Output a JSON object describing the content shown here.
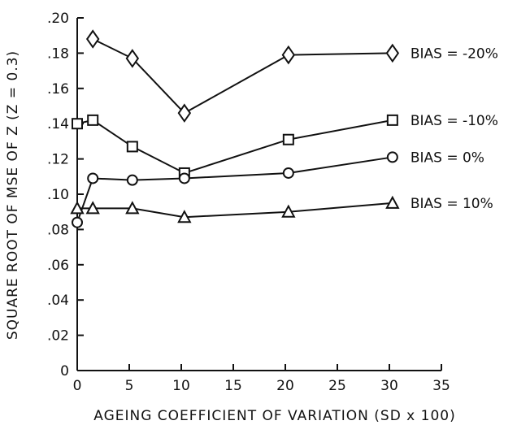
{
  "chart_data": {
    "type": "line",
    "title": "",
    "xlabel": "AGEING COEFFICIENT OF VARIATION (SD x 100)",
    "ylabel": "SQUARE ROOT OF MSE OF Z (Z = 0.3)",
    "xlim": [
      0,
      35
    ],
    "ylim": [
      0,
      0.2
    ],
    "x_ticks": [
      "0",
      "5",
      "10",
      "15",
      "20",
      "25",
      "30",
      "35"
    ],
    "y_ticks": [
      "0",
      ".02",
      ".04",
      ".06",
      ".08",
      ".10",
      ".12",
      ".14",
      ".16",
      ".18",
      ".20"
    ],
    "series": [
      {
        "name": "BIAS = -20%",
        "marker": "diamond",
        "x": [
          1.5,
          5.3,
          10.3,
          20.3,
          30.3
        ],
        "y": [
          0.188,
          0.177,
          0.146,
          0.179,
          0.18
        ]
      },
      {
        "name": "BIAS = -10%",
        "marker": "square",
        "x": [
          0,
          1.5,
          5.3,
          10.3,
          20.3,
          30.3
        ],
        "y": [
          0.14,
          0.142,
          0.127,
          0.112,
          0.131,
          0.142
        ]
      },
      {
        "name": "BIAS = 0%",
        "marker": "circle",
        "x": [
          0,
          1.5,
          5.3,
          10.3,
          20.3,
          30.3
        ],
        "y": [
          0.084,
          0.109,
          0.108,
          0.109,
          0.112,
          0.121
        ]
      },
      {
        "name": "BIAS = 10%",
        "marker": "triangle",
        "x": [
          0,
          1.5,
          5.3,
          10.3,
          20.3,
          30.3
        ],
        "y": [
          0.092,
          0.092,
          0.092,
          0.087,
          0.09,
          0.095
        ]
      }
    ]
  }
}
